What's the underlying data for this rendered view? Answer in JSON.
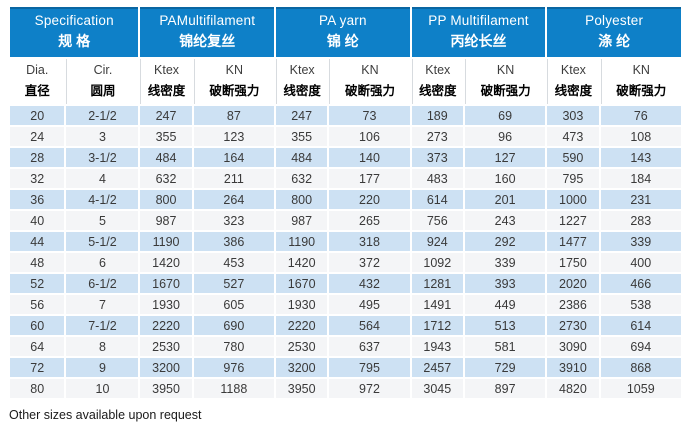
{
  "page": {
    "footer_note": "Other sizes available upon request"
  },
  "colors": {
    "header_bg": "#0e80c8",
    "header_text": "#ffffff",
    "row_alt_blue": "#cde1f3",
    "row_alt_gray": "#f4f5f7"
  },
  "chart_data": {
    "type": "table",
    "column_groups": [
      {
        "en": "Specification",
        "zh": "规 格"
      },
      {
        "en": "PAMultifilament",
        "zh": "锦纶复丝"
      },
      {
        "en": "PA yarn",
        "zh": "锦 纶"
      },
      {
        "en": "PP Multifilament",
        "zh": "丙纶长丝"
      },
      {
        "en": "Polyester",
        "zh": "涤 纶"
      }
    ],
    "columns": [
      {
        "en": "Dia.",
        "zh": "直径"
      },
      {
        "en": "Cir.",
        "zh": "圆周"
      },
      {
        "en": "Ktex",
        "zh": "线密度"
      },
      {
        "en": "KN",
        "zh": "破断强力"
      },
      {
        "en": "Ktex",
        "zh": "线密度"
      },
      {
        "en": "KN",
        "zh": "破断强力"
      },
      {
        "en": "Ktex",
        "zh": "线密度"
      },
      {
        "en": "KN",
        "zh": "破断强力"
      },
      {
        "en": "Ktex",
        "zh": "线密度"
      },
      {
        "en": "KN",
        "zh": "破断强力"
      }
    ],
    "rows": [
      [
        "20",
        "2-1/2",
        "247",
        "87",
        "247",
        "73",
        "189",
        "69",
        "303",
        "76"
      ],
      [
        "24",
        "3",
        "355",
        "123",
        "355",
        "106",
        "273",
        "96",
        "473",
        "108"
      ],
      [
        "28",
        "3-1/2",
        "484",
        "164",
        "484",
        "140",
        "373",
        "127",
        "590",
        "143"
      ],
      [
        "32",
        "4",
        "632",
        "211",
        "632",
        "177",
        "483",
        "160",
        "795",
        "184"
      ],
      [
        "36",
        "4-1/2",
        "800",
        "264",
        "800",
        "220",
        "614",
        "201",
        "1000",
        "231"
      ],
      [
        "40",
        "5",
        "987",
        "323",
        "987",
        "265",
        "756",
        "243",
        "1227",
        "283"
      ],
      [
        "44",
        "5-1/2",
        "1190",
        "386",
        "1190",
        "318",
        "924",
        "292",
        "1477",
        "339"
      ],
      [
        "48",
        "6",
        "1420",
        "453",
        "1420",
        "372",
        "1092",
        "339",
        "1750",
        "400"
      ],
      [
        "52",
        "6-1/2",
        "1670",
        "527",
        "1670",
        "432",
        "1281",
        "393",
        "2020",
        "466"
      ],
      [
        "56",
        "7",
        "1930",
        "605",
        "1930",
        "495",
        "1491",
        "449",
        "2386",
        "538"
      ],
      [
        "60",
        "7-1/2",
        "2220",
        "690",
        "2220",
        "564",
        "1712",
        "513",
        "2730",
        "614"
      ],
      [
        "64",
        "8",
        "2530",
        "780",
        "2530",
        "637",
        "1943",
        "581",
        "3090",
        "694"
      ],
      [
        "72",
        "9",
        "3200",
        "976",
        "3200",
        "795",
        "2457",
        "729",
        "3910",
        "868"
      ],
      [
        "80",
        "10",
        "3950",
        "1188",
        "3950",
        "972",
        "3045",
        "897",
        "4820",
        "1059"
      ]
    ]
  }
}
